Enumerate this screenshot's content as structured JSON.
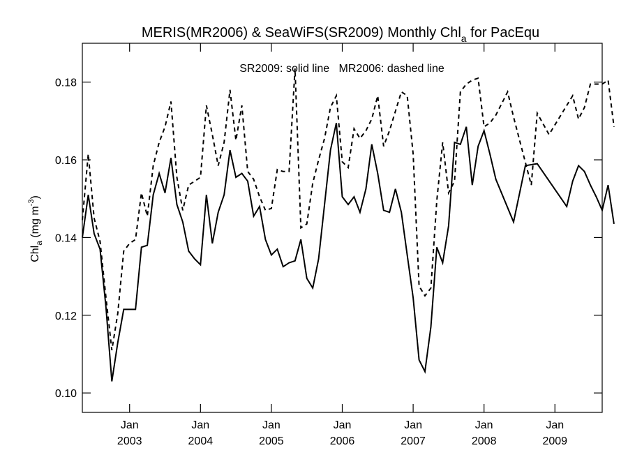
{
  "chart_data": {
    "type": "line",
    "title": "MERIS(MR2006) & SeaWiFS(SR2009) Monthly Chl",
    "title_subscript": "a",
    "title_suffix": " for PacEqu",
    "ylabel_main": "Chl",
    "ylabel_sub": "a",
    "ylabel_unit": " (mg m",
    "ylabel_sup": "-3",
    "ylabel_close": ")",
    "annotation": "SR2009: solid line   MR2006: dashed line",
    "xlim": [
      "2002-05",
      "2009-09"
    ],
    "ylim": [
      0.095,
      0.19
    ],
    "yticks": [
      0.1,
      0.12,
      0.14,
      0.16,
      0.18
    ],
    "ytick_labels": [
      "0.10",
      "0.12",
      "0.14",
      "0.16",
      "0.18"
    ],
    "xticks": [
      "2003-01",
      "2004-01",
      "2005-01",
      "2006-01",
      "2007-01",
      "2008-01",
      "2009-01"
    ],
    "xtick_month_label": "Jan",
    "xtick_year_labels": [
      "2003",
      "2004",
      "2005",
      "2006",
      "2007",
      "2008",
      "2009"
    ],
    "grid": false,
    "series": [
      {
        "style": "solid",
        "color": "#000000",
        "points": [
          [
            "2002-05",
            0.14
          ],
          [
            "2002-06",
            0.151
          ],
          [
            "2002-07",
            0.141
          ],
          [
            "2002-08",
            0.137
          ],
          [
            "2002-09",
            0.122
          ],
          [
            "2002-10",
            0.103
          ],
          [
            "2002-11",
            0.113
          ],
          [
            "2002-12",
            0.1215
          ],
          [
            "2003-01",
            0.1215
          ],
          [
            "2003-02",
            0.1215
          ],
          [
            "2003-03",
            0.1375
          ],
          [
            "2003-04",
            0.138
          ],
          [
            "2003-05",
            0.151
          ],
          [
            "2003-06",
            0.1565
          ],
          [
            "2003-07",
            0.1515
          ],
          [
            "2003-08",
            0.1605
          ],
          [
            "2003-09",
            0.1485
          ],
          [
            "2003-10",
            0.144
          ],
          [
            "2003-11",
            0.1365
          ],
          [
            "2003-12",
            0.1345
          ],
          [
            "2004-01",
            0.133
          ],
          [
            "2004-02",
            0.151
          ],
          [
            "2004-03",
            0.1385
          ],
          [
            "2004-04",
            0.1465
          ],
          [
            "2004-05",
            0.151
          ],
          [
            "2004-06",
            0.1625
          ],
          [
            "2004-07",
            0.1555
          ],
          [
            "2004-08",
            0.1565
          ],
          [
            "2004-09",
            0.1545
          ],
          [
            "2004-10",
            0.1455
          ],
          [
            "2004-11",
            0.148
          ],
          [
            "2004-12",
            0.1395
          ],
          [
            "2005-01",
            0.1355
          ],
          [
            "2005-02",
            0.137
          ],
          [
            "2005-03",
            0.1325
          ],
          [
            "2005-04",
            0.1335
          ],
          [
            "2005-05",
            0.134
          ],
          [
            "2005-06",
            0.1395
          ],
          [
            "2005-07",
            0.1295
          ],
          [
            "2005-08",
            0.127
          ],
          [
            "2005-09",
            0.1345
          ],
          [
            "2005-10",
            0.1485
          ],
          [
            "2005-11",
            0.1625
          ],
          [
            "2005-12",
            0.1695
          ],
          [
            "2006-01",
            0.1505
          ],
          [
            "2006-02",
            0.1485
          ],
          [
            "2006-03",
            0.1505
          ],
          [
            "2006-04",
            0.1465
          ],
          [
            "2006-05",
            0.1525
          ],
          [
            "2006-06",
            0.164
          ],
          [
            "2006-07",
            0.1565
          ],
          [
            "2006-08",
            0.147
          ],
          [
            "2006-09",
            0.1465
          ],
          [
            "2006-10",
            0.1525
          ],
          [
            "2006-11",
            0.1465
          ],
          [
            "2006-12",
            0.1355
          ],
          [
            "2007-01",
            0.1245
          ],
          [
            "2007-02",
            0.1085
          ],
          [
            "2007-03",
            0.1055
          ],
          [
            "2007-04",
            0.117
          ],
          [
            "2007-05",
            0.1375
          ],
          [
            "2007-06",
            0.1335
          ],
          [
            "2007-07",
            0.143
          ],
          [
            "2007-08",
            0.1645
          ],
          [
            "2007-09",
            0.164
          ],
          [
            "2007-10",
            0.1685
          ],
          [
            "2007-11",
            0.1535
          ],
          [
            "2007-12",
            0.1635
          ],
          [
            "2008-01",
            0.1675
          ],
          [
            "2008-02",
            0.1615
          ],
          [
            "2008-03",
            0.155
          ],
          [
            "2008-06",
            0.144
          ],
          [
            "2008-08",
            0.1585
          ],
          [
            "2008-10",
            0.159
          ],
          [
            "2009-03",
            0.148
          ],
          [
            "2009-04",
            0.1545
          ],
          [
            "2009-05",
            0.1585
          ],
          [
            "2009-06",
            0.157
          ],
          [
            "2009-07",
            0.1535
          ],
          [
            "2009-08",
            0.1505
          ],
          [
            "2009-09",
            0.147
          ],
          [
            "2009-10",
            0.1535
          ],
          [
            "2009-11",
            0.1435
          ]
        ]
      },
      {
        "style": "dashed",
        "color": "#000000",
        "points": [
          [
            "2002-05",
            0.1445
          ],
          [
            "2002-06",
            0.1615
          ],
          [
            "2002-07",
            0.145
          ],
          [
            "2002-08",
            0.139
          ],
          [
            "2002-09",
            0.1245
          ],
          [
            "2002-10",
            0.111
          ],
          [
            "2002-11",
            0.1205
          ],
          [
            "2002-12",
            0.1365
          ],
          [
            "2003-01",
            0.1385
          ],
          [
            "2003-02",
            0.1395
          ],
          [
            "2003-03",
            0.1515
          ],
          [
            "2003-04",
            0.1455
          ],
          [
            "2003-05",
            0.1585
          ],
          [
            "2003-06",
            0.1645
          ],
          [
            "2003-07",
            0.1685
          ],
          [
            "2003-08",
            0.175
          ],
          [
            "2003-09",
            0.1555
          ],
          [
            "2003-10",
            0.147
          ],
          [
            "2003-11",
            0.1535
          ],
          [
            "2003-12",
            0.1545
          ],
          [
            "2004-01",
            0.1555
          ],
          [
            "2004-02",
            0.174
          ],
          [
            "2004-03",
            0.1665
          ],
          [
            "2004-04",
            0.1585
          ],
          [
            "2004-05",
            0.1645
          ],
          [
            "2004-06",
            0.178
          ],
          [
            "2004-07",
            0.165
          ],
          [
            "2004-08",
            0.174
          ],
          [
            "2004-09",
            0.157
          ],
          [
            "2004-10",
            0.155
          ],
          [
            "2004-11",
            0.1505
          ],
          [
            "2004-12",
            0.147
          ],
          [
            "2005-01",
            0.1475
          ],
          [
            "2005-02",
            0.1575
          ],
          [
            "2005-03",
            0.157
          ],
          [
            "2005-04",
            0.157
          ],
          [
            "2005-05",
            0.1835
          ],
          [
            "2005-06",
            0.1425
          ],
          [
            "2005-07",
            0.1435
          ],
          [
            "2005-08",
            0.154
          ],
          [
            "2005-09",
            0.16
          ],
          [
            "2005-10",
            0.1655
          ],
          [
            "2005-11",
            0.1735
          ],
          [
            "2005-12",
            0.1765
          ],
          [
            "2006-01",
            0.1595
          ],
          [
            "2006-02",
            0.158
          ],
          [
            "2006-03",
            0.168
          ],
          [
            "2006-04",
            0.1655
          ],
          [
            "2006-05",
            0.1675
          ],
          [
            "2006-06",
            0.1705
          ],
          [
            "2006-07",
            0.1765
          ],
          [
            "2006-08",
            0.1635
          ],
          [
            "2006-09",
            0.1675
          ],
          [
            "2006-10",
            0.1725
          ],
          [
            "2006-11",
            0.1775
          ],
          [
            "2006-12",
            0.1765
          ],
          [
            "2007-01",
            0.1615
          ],
          [
            "2007-02",
            0.1275
          ],
          [
            "2007-03",
            0.125
          ],
          [
            "2007-04",
            0.127
          ],
          [
            "2007-05",
            0.1495
          ],
          [
            "2007-06",
            0.1645
          ],
          [
            "2007-07",
            0.1515
          ],
          [
            "2007-08",
            0.1545
          ],
          [
            "2007-09",
            0.1775
          ],
          [
            "2007-10",
            0.1795
          ],
          [
            "2007-11",
            0.1805
          ],
          [
            "2007-12",
            0.181
          ],
          [
            "2008-01",
            0.1685
          ],
          [
            "2008-02",
            0.1695
          ],
          [
            "2008-03",
            0.1715
          ],
          [
            "2008-04",
            0.1745
          ],
          [
            "2008-05",
            0.1775
          ],
          [
            "2008-06",
            0.171
          ],
          [
            "2008-09",
            0.1535
          ],
          [
            "2008-10",
            0.172
          ],
          [
            "2008-12",
            0.1665
          ],
          [
            "2009-04",
            0.1765
          ],
          [
            "2009-05",
            0.1705
          ],
          [
            "2009-06",
            0.1735
          ],
          [
            "2009-07",
            0.1795
          ],
          [
            "2009-09",
            0.1795
          ],
          [
            "2009-10",
            0.1805
          ],
          [
            "2009-11",
            0.1685
          ]
        ]
      }
    ]
  }
}
